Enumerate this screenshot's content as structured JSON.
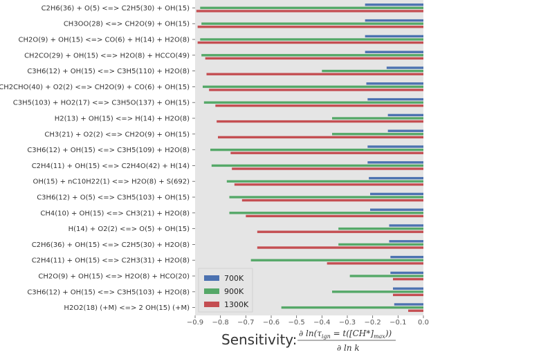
{
  "chart_data": {
    "type": "bar",
    "orientation": "horizontal",
    "categories": [
      "C2H6(36) + O(5) <=> C2H5(30) + OH(15)",
      "CH3OO(28) <=> CH2O(9) + OH(15)",
      "CH2O(9) + OH(15) <=> CO(6) + H(14) + H2O(8)",
      "CH2CO(29) + OH(15) <=> H2O(8) + HCCO(49)",
      "C3H6(12) + OH(15) <=> C3H5(110) + H2O(8)",
      "CH2CHO(40) + O2(2) <=> CH2O(9) + CO(6) + OH(15)",
      "C3H5(103) + HO2(17) <=> C3H5O(137) + OH(15)",
      "H2(13) + OH(15) <=> H(14) + H2O(8)",
      "CH3(21) + O2(2) <=> CH2O(9) + OH(15)",
      "C3H6(12) + OH(15) <=> C3H5(109) + H2O(8)",
      "C2H4(11) + OH(15) <=> C2H4O(42) + H(14)",
      "OH(15) + nC10H22(1) <=> H2O(8) + S(692)",
      "C3H6(12) + O(5) <=> C3H5(103) + OH(15)",
      "CH4(10) + OH(15) <=> CH3(21) + H2O(8)",
      "H(14) + O2(2) <=> O(5) + OH(15)",
      "C2H6(36) + OH(15) <=> C2H5(30) + H2O(8)",
      "C2H4(11) + OH(15) <=> C2H3(31) + H2O(8)",
      "CH2O(9) + OH(15) <=> H2O(8) + HCO(20)",
      "C3H6(12) + OH(15) <=> C3H5(103) + H2O(8)",
      "H2O2(18) (+M) <=> 2 OH(15) (+M)"
    ],
    "series": [
      {
        "name": "700K",
        "color": "#4c72b0",
        "values": [
          -0.23,
          -0.23,
          -0.23,
          -0.23,
          -0.145,
          -0.225,
          -0.22,
          -0.14,
          -0.14,
          -0.22,
          -0.22,
          -0.215,
          -0.21,
          -0.21,
          -0.135,
          -0.135,
          -0.13,
          -0.13,
          -0.12,
          -0.115
        ]
      },
      {
        "name": "900K",
        "color": "#55a868",
        "values": [
          -0.88,
          -0.875,
          -0.88,
          -0.875,
          -0.4,
          -0.87,
          -0.865,
          -0.36,
          -0.36,
          -0.84,
          -0.835,
          -0.775,
          -0.765,
          -0.765,
          -0.335,
          -0.335,
          -0.68,
          -0.29,
          -0.36,
          -0.56
        ]
      },
      {
        "name": "1300K",
        "color": "#c44e52",
        "values": [
          -0.895,
          -0.89,
          -0.89,
          -0.86,
          -0.855,
          -0.845,
          -0.82,
          -0.815,
          -0.81,
          -0.76,
          -0.755,
          -0.745,
          -0.715,
          -0.7,
          -0.655,
          -0.655,
          -0.38,
          -0.12,
          -0.12,
          -0.06
        ]
      }
    ],
    "xlim": [
      -0.9,
      0.0
    ],
    "xticks": [
      "−0.9",
      "−0.8",
      "−0.7",
      "−0.6",
      "−0.5",
      "−0.4",
      "−0.3",
      "−0.2",
      "−0.1",
      "0.0"
    ],
    "xlabel": "Sensitivity:",
    "xlabel_math_numerator": "∂ ln(τ",
    "xlabel_math_sub": "ign",
    "xlabel_math_rest": " = t([CH*]",
    "xlabel_math_sub2": "max",
    "xlabel_math_close": "))",
    "xlabel_math_denominator": "∂ ln k",
    "grid": false,
    "legend_position": "bottom-left",
    "background": "#e5e5e5"
  }
}
